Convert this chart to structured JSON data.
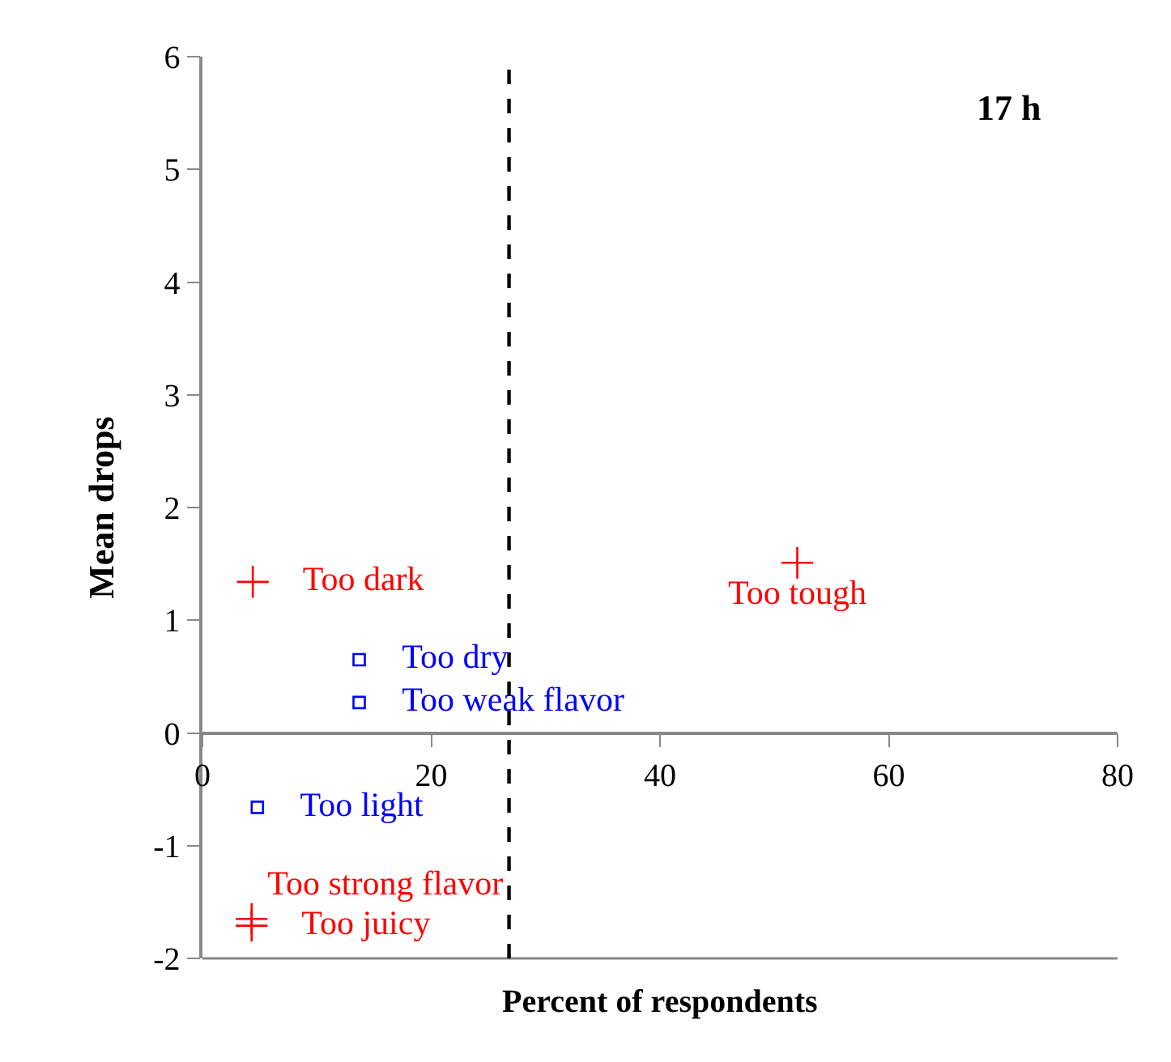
{
  "chart_data": {
    "type": "scatter",
    "title": "17 h",
    "xlabel": "Percent of respondents",
    "ylabel": "Mean drops",
    "xlim": [
      0,
      80
    ],
    "xticks": [
      0,
      20,
      40,
      60,
      80
    ],
    "ylim": [
      -2,
      6
    ],
    "yticks": [
      -2,
      -1,
      0,
      1,
      2,
      3,
      4,
      5,
      6
    ],
    "legend": false,
    "ref_lines": [
      {
        "axis": "x",
        "value": 26.8,
        "label": null,
        "color": "#000000",
        "line_style": "dashed"
      }
    ],
    "series": [
      {
        "name": "Too dark",
        "color": "#ff0000",
        "marker": "cross",
        "x": [
          4.4
        ],
        "values": [
          1.34
        ]
      },
      {
        "name": "Too tough",
        "color": "#ff0000",
        "marker": "cross",
        "x": [
          52
        ],
        "values": [
          1.51
        ]
      },
      {
        "name": "Too dry",
        "color": "#0000ff",
        "marker": "square",
        "x": [
          13.7
        ],
        "values": [
          0.65
        ]
      },
      {
        "name": "Too weak flavor",
        "color": "#0000ff",
        "marker": "square",
        "x": [
          13.7
        ],
        "values": [
          0.27
        ]
      },
      {
        "name": "Too light",
        "color": "#0000ff",
        "marker": "square",
        "x": [
          4.8
        ],
        "values": [
          -0.66
        ]
      },
      {
        "name": "Too strong flavor",
        "color": "#ff0000",
        "marker": "cross",
        "x": [
          4.3
        ],
        "values": [
          -1.65
        ]
      },
      {
        "name": "Too juicy",
        "color": "#ff0000",
        "marker": "cross",
        "x": [
          4.3
        ],
        "values": [
          -1.71
        ]
      }
    ]
  }
}
